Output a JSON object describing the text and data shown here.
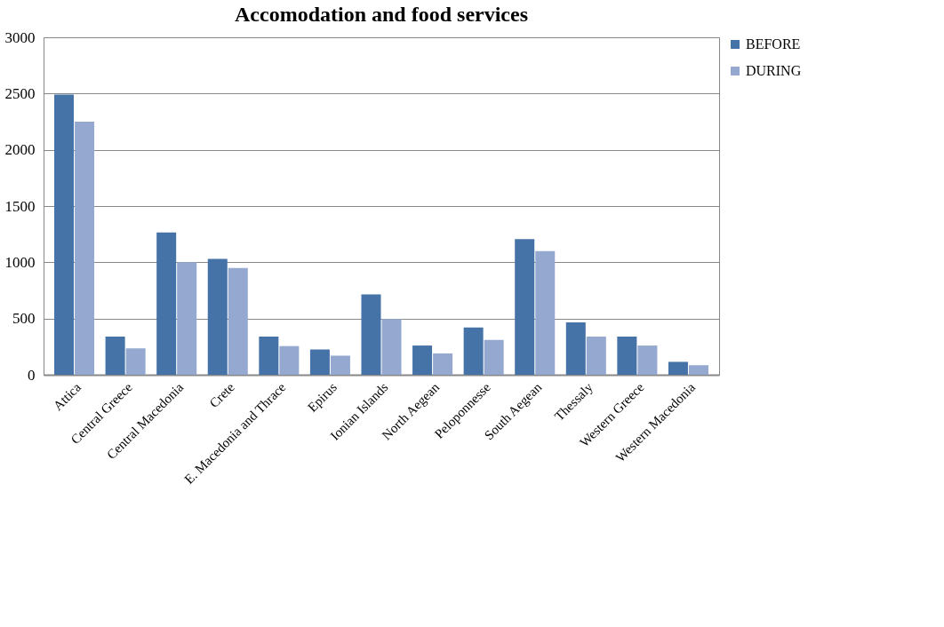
{
  "chart_data": {
    "type": "bar",
    "title": "Accomodation and food services",
    "categories": [
      "Attica",
      "Central Greece",
      "Central Macedonia",
      "Crete",
      "E. Macedonia and Thrace",
      "Epirus",
      "Ionian Islands",
      "North Aegean",
      "Peloponnesse",
      "South Aegean",
      "Thessaly",
      "Western Greece",
      "Western Macedonia"
    ],
    "series": [
      {
        "name": "BEFORE",
        "color": "#4572a7",
        "values": [
          2490,
          340,
          1265,
          1030,
          340,
          225,
          715,
          260,
          420,
          1205,
          465,
          340,
          115
        ]
      },
      {
        "name": "DURING",
        "color": "#95a9d0",
        "values": [
          2250,
          235,
          1000,
          950,
          255,
          170,
          495,
          190,
          310,
          1100,
          340,
          260,
          85
        ]
      }
    ],
    "ylim": [
      0,
      3000
    ],
    "yticks": [
      0,
      500,
      1000,
      1500,
      2000,
      2500,
      3000
    ],
    "grid": "y",
    "legend": "right"
  }
}
